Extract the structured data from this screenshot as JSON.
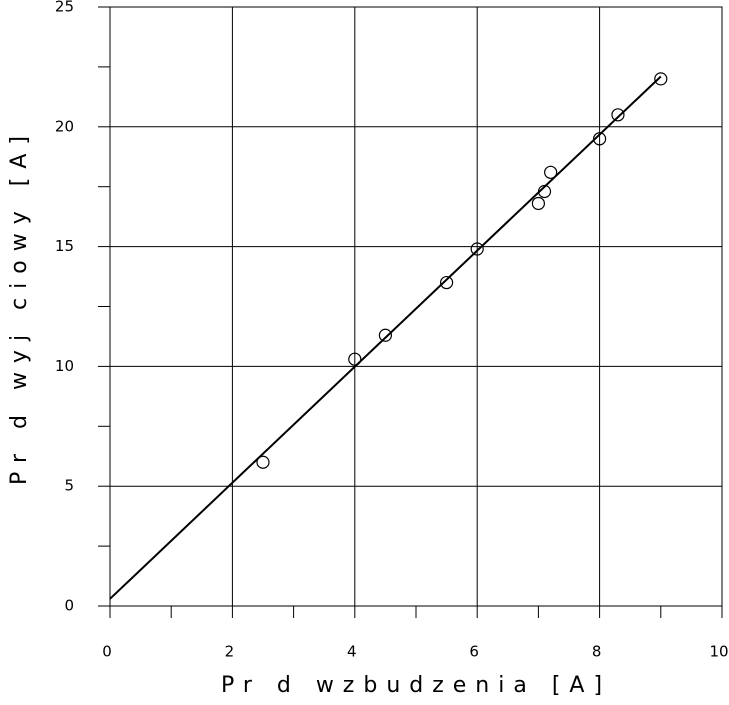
{
  "chart_data": {
    "type": "scatter",
    "xlabel": "Pr d wzbudzenia [A]",
    "ylabel": "Pr d wyj ciowy [A]",
    "points": {
      "x": [
        2.5,
        4,
        4.5,
        5.5,
        6,
        7,
        7.1,
        7.2,
        8,
        8.3,
        9
      ],
      "values": [
        6.0,
        10.3,
        11.3,
        13.5,
        14.9,
        16.8,
        17.3,
        18.1,
        19.5,
        20.5,
        22.0
      ]
    },
    "fit_line": {
      "x": [
        0,
        9
      ],
      "values": [
        0.3,
        22.1
      ]
    },
    "xlim": [
      0,
      10
    ],
    "ylim": [
      0,
      25
    ],
    "xticks": [
      0,
      2,
      4,
      6,
      8,
      10
    ],
    "yticks": [
      0,
      5,
      10,
      15,
      20,
      25
    ],
    "xminorticks": [
      1,
      3,
      5,
      7,
      9
    ],
    "yminorticks": [
      2.5,
      7.5,
      12.5,
      17.5,
      22.5
    ],
    "grid": true,
    "color": "#000000"
  }
}
